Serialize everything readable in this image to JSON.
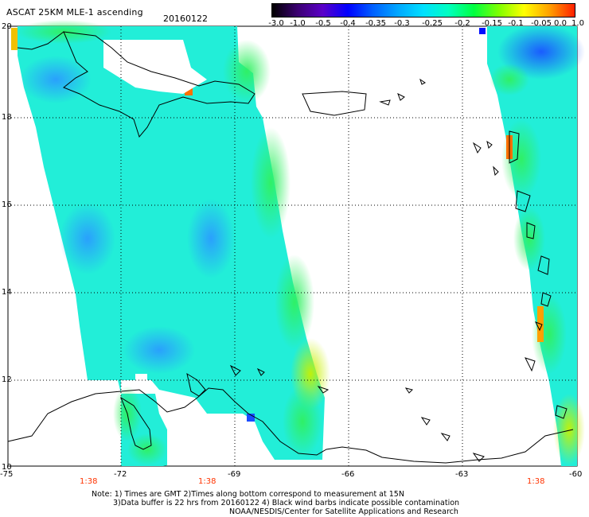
{
  "header": {
    "title": "ASCAT 25KM MLE-1 ascending",
    "date": "20160122"
  },
  "colorbar": {
    "labels": [
      "-3.0",
      "-1.0",
      "-0.5",
      "-0.4",
      "-0.35",
      "-0.3",
      "-0.25",
      "-0.2",
      "-0.15",
      "-0.1",
      "-0.05",
      "0.0",
      "1.0"
    ],
    "colors": [
      "#000000",
      "#3a0070",
      "#5a00c8",
      "#0000ff",
      "#0060ff",
      "#00a8ff",
      "#00e0ff",
      "#00ffc0",
      "#00ff40",
      "#80ff00",
      "#ffff00",
      "#ffa000",
      "#ff2000"
    ]
  },
  "axes": {
    "lat_labels": [
      "20",
      "18",
      "16",
      "14",
      "12",
      "10"
    ],
    "lon_labels": [
      "-75",
      "-72",
      "-69",
      "-66",
      "-63",
      "-60"
    ],
    "time_labels": [
      "1:38",
      "1:38",
      "1:38"
    ]
  },
  "note": {
    "line1": "Note: 1) Times are GMT 2)Times along bottom correspond to measurement at 15N",
    "line2": "3)Data buffer is 22 hrs from 20160122 4) Black wind barbs indicate possible contamination",
    "line3": "NOAA/NESDIS/Center for Satellite Applications and Research"
  },
  "colors": {
    "swath_base": "#22eed8",
    "land_outline": "#000000",
    "grid": "#000000",
    "time_label": "#ff3300"
  }
}
